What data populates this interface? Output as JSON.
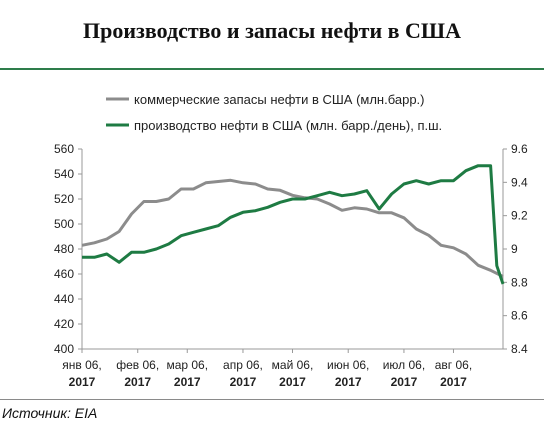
{
  "title": "Производство и запасы нефти в США",
  "source": "Источник: EIA",
  "colors": {
    "stocks": "#8c8c8c",
    "production": "#1e7b43",
    "accent_rule": "#2e7d4b",
    "axis": "#999999"
  },
  "chart_data": {
    "type": "line",
    "legend_position": "top",
    "grid": false,
    "x_ticks": [
      {
        "line1": "янв 06,",
        "line2": "2017",
        "x": 0
      },
      {
        "line1": "фев 06,",
        "line2": "2017",
        "x": 4.5
      },
      {
        "line1": "мар 06,",
        "line2": "2017",
        "x": 8.5
      },
      {
        "line1": "апр 06,",
        "line2": "2017",
        "x": 13
      },
      {
        "line1": "май 06,",
        "line2": "2017",
        "x": 17
      },
      {
        "line1": "июн 06,",
        "line2": "2017",
        "x": 21.5
      },
      {
        "line1": "июл 06,",
        "line2": "2017",
        "x": 26
      },
      {
        "line1": "авг 06,",
        "line2": "2017",
        "x": 30
      }
    ],
    "xlim": [
      0,
      34
    ],
    "y_left": {
      "lim": [
        400,
        560
      ],
      "ticks": [
        "400",
        "420",
        "440",
        "460",
        "480",
        "500",
        "520",
        "540",
        "560"
      ]
    },
    "y_right": {
      "lim": [
        8.4,
        9.6
      ],
      "ticks": [
        "8.4",
        "8.6",
        "8.8",
        "9",
        "9.2",
        "9.4",
        "9.6"
      ]
    },
    "series": [
      {
        "name": "коммерческие запасы нефти  в США  (млн.барр.)",
        "axis": "left",
        "x": [
          0,
          1,
          2,
          3,
          4,
          5,
          6,
          7,
          8,
          9,
          10,
          11,
          12,
          13,
          14,
          15,
          16,
          17,
          18,
          19,
          20,
          21,
          22,
          23,
          24,
          25,
          26,
          27,
          28,
          29,
          30,
          31,
          32,
          33,
          34
        ],
        "values": [
          483,
          485,
          488,
          494,
          508,
          518,
          518,
          520,
          528,
          528,
          533,
          534,
          535,
          533,
          532,
          528,
          527,
          523,
          521,
          520,
          516,
          511,
          513,
          512,
          509,
          509,
          505,
          496,
          491,
          483,
          481,
          476,
          467,
          463,
          458
        ]
      },
      {
        "name": "производство нефти  в США  (млн. барр./день), п.ш.",
        "axis": "right",
        "x": [
          0,
          1,
          2,
          3,
          4,
          5,
          6,
          7,
          8,
          9,
          10,
          11,
          12,
          13,
          14,
          15,
          16,
          17,
          18,
          19,
          20,
          21,
          22,
          23,
          24,
          25,
          26,
          27,
          28,
          29,
          30,
          31,
          32,
          33,
          33.5,
          34
        ],
        "values": [
          8.95,
          8.95,
          8.97,
          8.92,
          8.98,
          8.98,
          9.0,
          9.03,
          9.08,
          9.1,
          9.12,
          9.14,
          9.19,
          9.22,
          9.23,
          9.25,
          9.28,
          9.3,
          9.3,
          9.32,
          9.34,
          9.32,
          9.33,
          9.35,
          9.24,
          9.33,
          9.39,
          9.41,
          9.39,
          9.41,
          9.41,
          9.47,
          9.5,
          9.5,
          8.9,
          8.79
        ]
      }
    ]
  }
}
